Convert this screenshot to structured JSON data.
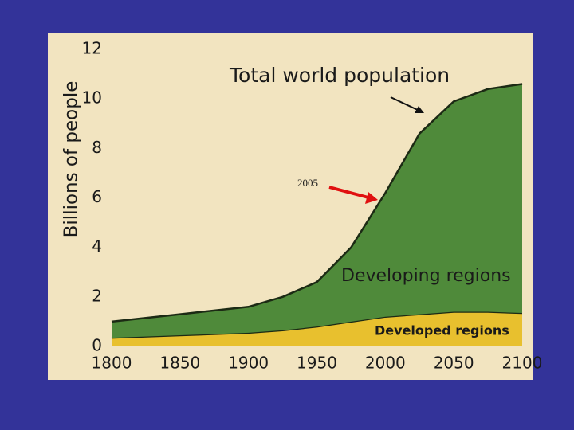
{
  "chart_data": {
    "type": "stacked-area",
    "y_label": "Billions of people",
    "x": [
      1800,
      1850,
      1900,
      1925,
      1950,
      1975,
      2000,
      2025,
      2050,
      2075,
      2100
    ],
    "series": [
      {
        "name": "Developed regions",
        "color": "#e8c02e",
        "values": [
          0.35,
          0.45,
          0.55,
          0.65,
          0.8,
          1.0,
          1.2,
          1.3,
          1.4,
          1.4,
          1.35
        ]
      },
      {
        "name": "Developing regions",
        "color": "#4f8a3a",
        "values": [
          0.65,
          0.85,
          1.05,
          1.35,
          1.8,
          3.0,
          5.0,
          7.3,
          8.5,
          9.0,
          9.25
        ]
      }
    ],
    "xlim": [
      1800,
      2100
    ],
    "xticks": [
      1800,
      1850,
      1900,
      1950,
      2000,
      2050,
      2100
    ],
    "ylim": [
      0,
      12
    ],
    "yticks": [
      0,
      2,
      4,
      6,
      8,
      10,
      12
    ],
    "annotations": [
      "Total world population",
      "2005"
    ]
  }
}
